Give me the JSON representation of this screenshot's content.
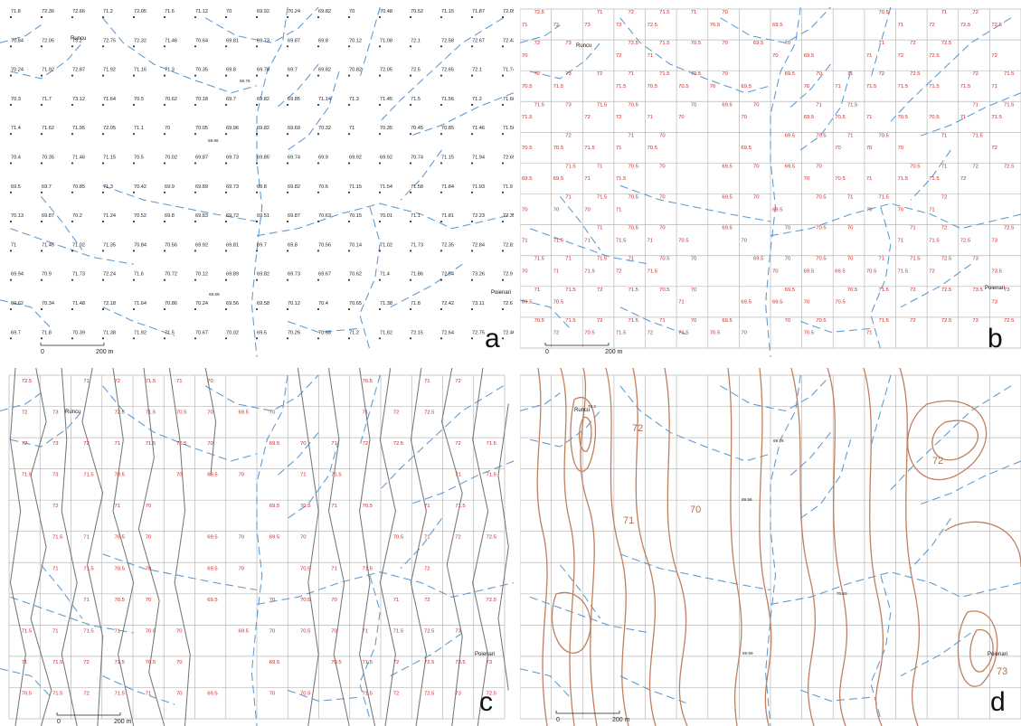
{
  "panels": {
    "a": {
      "letter": "a"
    },
    "b": {
      "letter": "b"
    },
    "c": {
      "letter": "c"
    },
    "d": {
      "letter": "d"
    }
  },
  "scale_bar": {
    "zero": "0",
    "dist": "200 m"
  },
  "towns": {
    "runcu": "Runcu",
    "poienari": "Poienari"
  },
  "spot_heights": {
    "runcu": "73.2",
    "s1": "69.78",
    "s2": "69.96",
    "s3": "70.63",
    "s4": "69.89"
  },
  "point_elevations": [
    [
      "71.8",
      "72.36",
      "72.66",
      "71.2",
      "72.05",
      "71.6",
      "71.12",
      "70",
      "69.92",
      "70.24",
      "69.82",
      "70",
      "70.48",
      "70.52",
      "71.15",
      "71.87",
      "72.09"
    ],
    [
      "70.84",
      "72.05",
      "73.2",
      "72.75",
      "72.32",
      "71.46",
      "70.64",
      "69.81",
      "69.73",
      "69.87",
      "69.8",
      "70.12",
      "71.08",
      "72.1",
      "72.58",
      "72.67",
      "72.43"
    ],
    [
      "70.24",
      "71.92",
      "72.87",
      "71.92",
      "71.16",
      "71.3",
      "70.35",
      "69.8",
      "69.78",
      "69.7",
      "69.82",
      "70.82",
      "72.05",
      "72.5",
      "72.65",
      "72.1",
      "71.74"
    ],
    [
      "70.3",
      "71.7",
      "73.12",
      "71.64",
      "70.5",
      "70.62",
      "70.18",
      "69.7",
      "69.82",
      "69.85",
      "71.14",
      "71.3",
      "71.45",
      "71.5",
      "71.56",
      "71.2",
      "71.66"
    ],
    [
      "71.4",
      "71.62",
      "71.95",
      "72.05",
      "71.1",
      "70",
      "70.05",
      "69.96",
      "69.82",
      "69.69",
      "70.32",
      "71",
      "70.35",
      "70.45",
      "70.85",
      "71.46",
      "71.56"
    ],
    [
      "70.4",
      "70.35",
      "71.46",
      "71.15",
      "70.5",
      "70.02",
      "69.87",
      "69.73",
      "69.85",
      "69.74",
      "69.9",
      "69.92",
      "69.92",
      "70.74",
      "71.15",
      "71.94",
      "72.65"
    ],
    [
      "69.5",
      "69.7",
      "70.85",
      "71.3",
      "70.42",
      "69.9",
      "69.89",
      "69.73",
      "69.8",
      "69.82",
      "70.6",
      "71.15",
      "71.54",
      "71.58",
      "71.84",
      "71.93",
      "71.9"
    ],
    [
      "70.13",
      "69.87",
      "70.2",
      "71.24",
      "70.52",
      "69.8",
      "69.83",
      "69.72",
      "69.51",
      "69.87",
      "70.63",
      "70.15",
      "70.01",
      "71.1",
      "71.81",
      "72.23",
      "72.35"
    ],
    [
      "71",
      "71.45",
      "71.02",
      "71.35",
      "70.84",
      "70.56",
      "69.92",
      "69.81",
      "69.7",
      "69.8",
      "70.56",
      "70.14",
      "71.02",
      "71.73",
      "72.35",
      "72.84",
      "72.81"
    ],
    [
      "69.94",
      "70.9",
      "71.73",
      "72.24",
      "71.6",
      "70.72",
      "70.12",
      "69.89",
      "69.82",
      "69.73",
      "69.67",
      "70.62",
      "71.4",
      "71.86",
      "72.54",
      "73.26",
      "72.9"
    ],
    [
      "69.62",
      "70.34",
      "71.48",
      "72.18",
      "71.64",
      "70.86",
      "70.24",
      "69.56",
      "69.58",
      "70.12",
      "70.4",
      "70.65",
      "71.38",
      "71.8",
      "72.42",
      "73.11",
      "72.6"
    ],
    [
      "69.7",
      "71.8",
      "70.39",
      "71.38",
      "71.92",
      "71.5",
      "70.67",
      "70.02",
      "69.5",
      "70.26",
      "70.68",
      "71.2",
      "71.62",
      "72.15",
      "72.64",
      "72.75",
      "72.46"
    ]
  ],
  "contour_label_values": [
    "70",
    "70.5",
    "71",
    "71.5",
    "72",
    "72.5",
    "73"
  ],
  "isoline_labels": [
    {
      "text": "72"
    },
    {
      "text": "71"
    },
    {
      "text": "70"
    },
    {
      "text": "72"
    },
    {
      "text": "73"
    }
  ]
}
